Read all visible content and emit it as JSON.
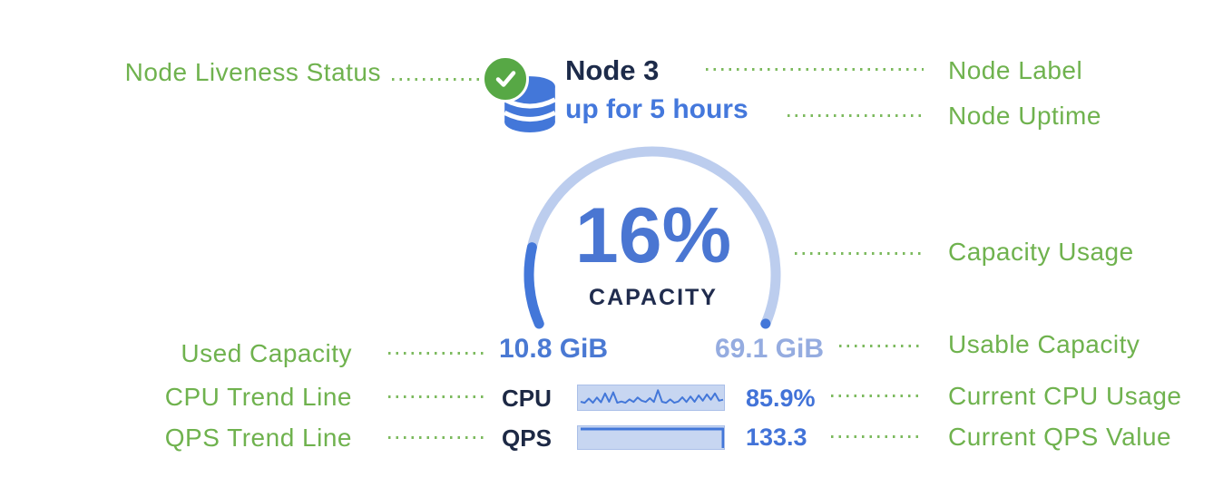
{
  "node_card": {
    "label": "Node 3",
    "uptime": "up for 5 hours",
    "capacity": {
      "percent_label": "16%",
      "percent_value": 16,
      "caption": "CAPACITY",
      "used": "10.8 GiB",
      "usable": "69.1 GiB"
    },
    "cpu": {
      "label": "CPU",
      "value": "85.9%",
      "trend": [
        0.35,
        0.3,
        0.5,
        0.3,
        0.55,
        0.32,
        0.75,
        0.35,
        0.8,
        0.3,
        0.36,
        0.3,
        0.46,
        0.34,
        0.55,
        0.4,
        0.34,
        0.52,
        0.34,
        0.9,
        0.35,
        0.3,
        0.46,
        0.3,
        0.36,
        0.56,
        0.34,
        0.6,
        0.35,
        0.65,
        0.4,
        0.7,
        0.45,
        0.75,
        0.4,
        0.45
      ]
    },
    "qps": {
      "label": "QPS",
      "value": "133.3",
      "trend": [
        1,
        1,
        1,
        1,
        1,
        1,
        1,
        1,
        1,
        1,
        1,
        1
      ]
    }
  },
  "annotations": {
    "left": [
      {
        "label": "Node Liveness Status"
      },
      {
        "label": "Used Capacity"
      },
      {
        "label": "CPU Trend Line"
      },
      {
        "label": "QPS Trend Line"
      }
    ],
    "right": [
      {
        "label": "Node Label"
      },
      {
        "label": "Node Uptime"
      },
      {
        "label": "Capacity Usage"
      },
      {
        "label": "Usable Capacity"
      },
      {
        "label": "Current CPU Usage"
      },
      {
        "label": "Current QPS Value"
      }
    ]
  },
  "colors": {
    "annotation_green": "#6fb24e",
    "leader_green": "#7cba5e",
    "liveness_badge_green": "#57a845",
    "database_icon_blue": "#4377d9",
    "title_navy": "#1d2b4a",
    "uptime_blue": "#4478dc",
    "gauge_track": "#bccdee",
    "gauge_fill": "#4377d9",
    "percent_blue": "#4a76d2",
    "caption_navy": "#202c4e",
    "used_blue": "#4a79d3",
    "usable_blue": "#95ace0",
    "spark_bg": "#c7d6f1",
    "spark_line": "#4377d9",
    "value_blue": "#4273d8"
  }
}
